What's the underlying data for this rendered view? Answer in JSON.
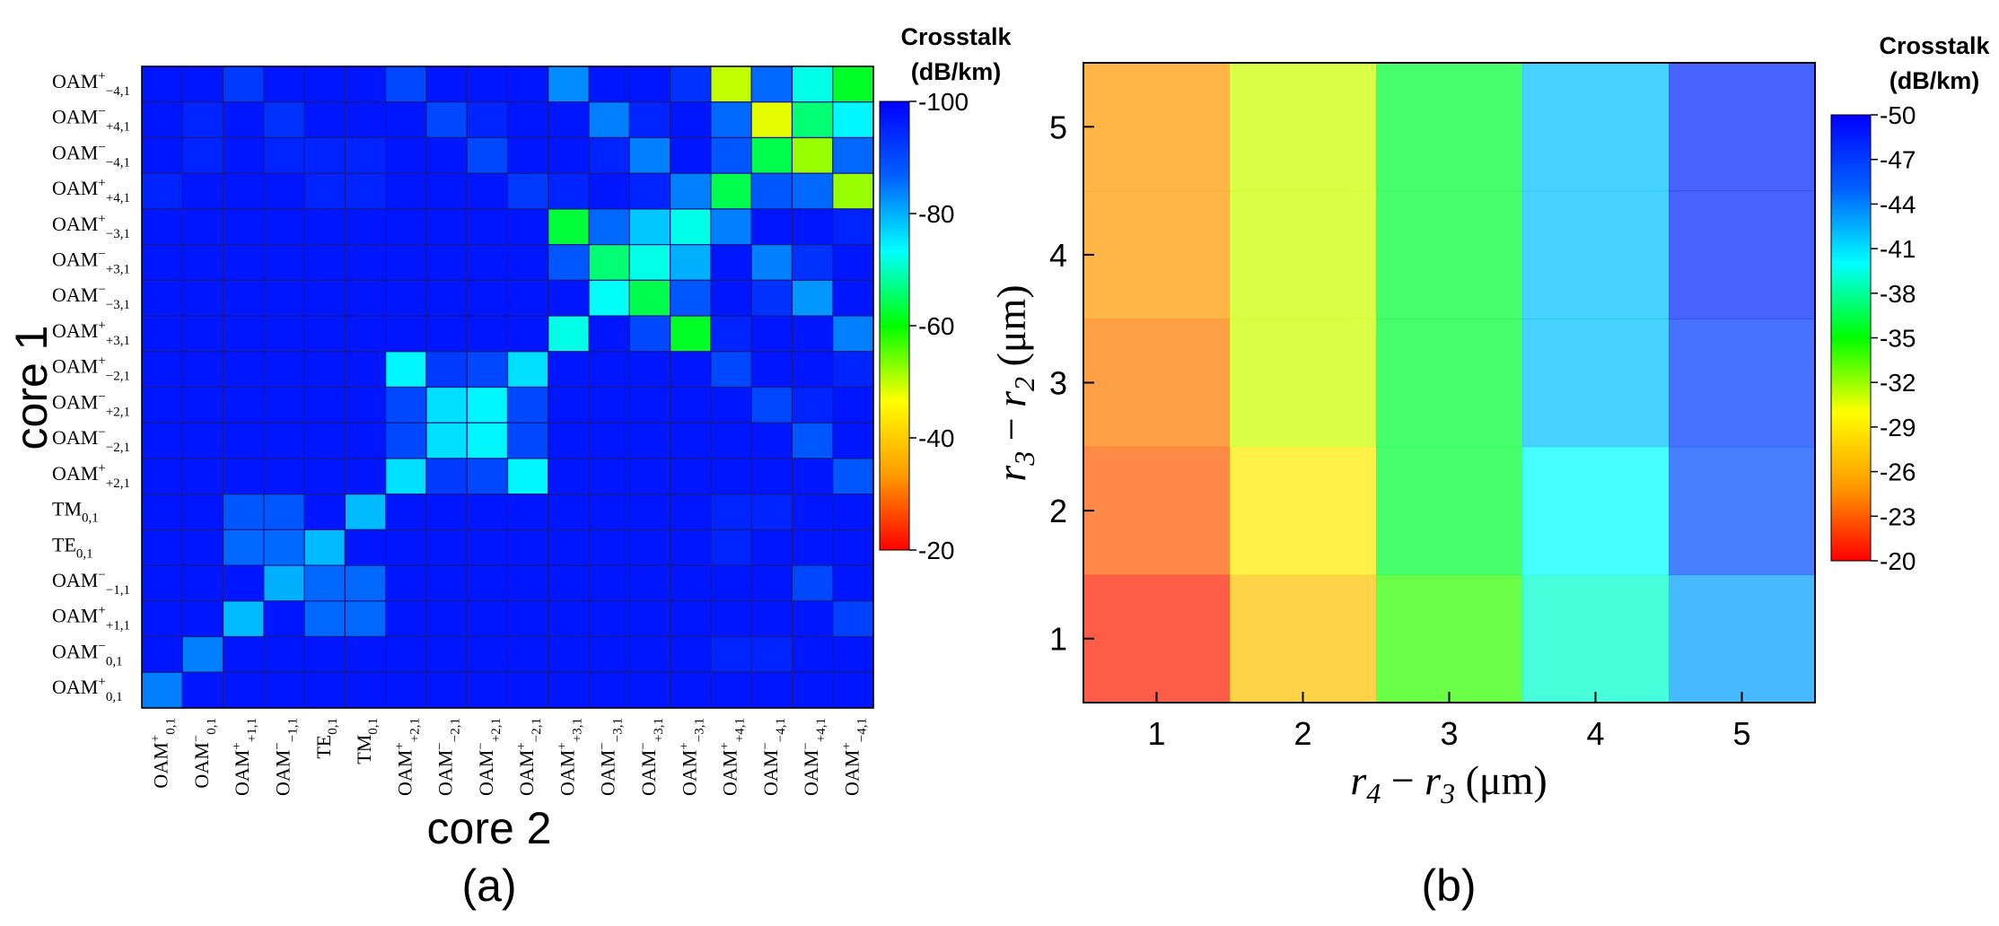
{
  "colors": {
    "scale": [
      "#ff0000",
      "#ff9a00",
      "#ffff00",
      "#00ff00",
      "#00ffff",
      "#0060ff",
      "#0000ff"
    ],
    "grid": "#1a1a8a",
    "text": "#000000"
  },
  "chart_data": [
    {
      "type": "heatmap",
      "panel_label": "(a)",
      "xlabel": "core 2",
      "ylabel": "core 1",
      "colorbar": {
        "title_line1": "Crosstalk",
        "title_line2": "(dB/km)",
        "range": [
          -100,
          -20
        ],
        "ticks": [
          "-100",
          "-80",
          "-60",
          "-40",
          "-20"
        ]
      },
      "x_categories": [
        {
          "base": "OAM",
          "sub": "0,1",
          "sup": "+"
        },
        {
          "base": "OAM",
          "sub": "0,1",
          "sup": "−"
        },
        {
          "base": "OAM",
          "sub": "+1,1",
          "sup": "+"
        },
        {
          "base": "OAM",
          "sub": "−1,1",
          "sup": "−"
        },
        {
          "base": "TE",
          "sub": "0,1",
          "sup": ""
        },
        {
          "base": "TM",
          "sub": "0,1",
          "sup": ""
        },
        {
          "base": "OAM",
          "sub": "+2,1",
          "sup": "+"
        },
        {
          "base": "OAM",
          "sub": "−2,1",
          "sup": "−"
        },
        {
          "base": "OAM",
          "sub": "+2,1",
          "sup": "−"
        },
        {
          "base": "OAM",
          "sub": "−2,1",
          "sup": "+"
        },
        {
          "base": "OAM",
          "sub": "+3,1",
          "sup": "+"
        },
        {
          "base": "OAM",
          "sub": "−3,1",
          "sup": "−"
        },
        {
          "base": "OAM",
          "sub": "+3,1",
          "sup": "−"
        },
        {
          "base": "OAM",
          "sub": "−3,1",
          "sup": "+"
        },
        {
          "base": "OAM",
          "sub": "+4,1",
          "sup": "+"
        },
        {
          "base": "OAM",
          "sub": "−4,1",
          "sup": "−"
        },
        {
          "base": "OAM",
          "sub": "+4,1",
          "sup": "−"
        },
        {
          "base": "OAM",
          "sub": "−4,1",
          "sup": "+"
        }
      ],
      "y_categories": [
        {
          "base": "OAM",
          "sub": "−4,1",
          "sup": "+"
        },
        {
          "base": "OAM",
          "sub": "+4,1",
          "sup": "−"
        },
        {
          "base": "OAM",
          "sub": "−4,1",
          "sup": "−"
        },
        {
          "base": "OAM",
          "sub": "+4,1",
          "sup": "+"
        },
        {
          "base": "OAM",
          "sub": "−3,1",
          "sup": "+"
        },
        {
          "base": "OAM",
          "sub": "+3,1",
          "sup": "−"
        },
        {
          "base": "OAM",
          "sub": "−3,1",
          "sup": "−"
        },
        {
          "base": "OAM",
          "sub": "+3,1",
          "sup": "+"
        },
        {
          "base": "OAM",
          "sub": "−2,1",
          "sup": "+"
        },
        {
          "base": "OAM",
          "sub": "+2,1",
          "sup": "−"
        },
        {
          "base": "OAM",
          "sub": "−2,1",
          "sup": "−"
        },
        {
          "base": "OAM",
          "sub": "+2,1",
          "sup": "+"
        },
        {
          "base": "TM",
          "sub": "0,1",
          "sup": ""
        },
        {
          "base": "TE",
          "sub": "0,1",
          "sup": ""
        },
        {
          "base": "OAM",
          "sub": "−1,1",
          "sup": "−"
        },
        {
          "base": "OAM",
          "sub": "+1,1",
          "sup": "+"
        },
        {
          "base": "OAM",
          "sub": "0,1",
          "sup": "−"
        },
        {
          "base": "OAM",
          "sub": "0,1",
          "sup": "+"
        }
      ],
      "values": [
        [
          -97,
          -97,
          -92,
          -97,
          -97,
          -97,
          -90,
          -97,
          -97,
          -97,
          -83,
          -97,
          -97,
          -93,
          -50,
          -86,
          -72,
          -62
        ],
        [
          -97,
          -95,
          -97,
          -93,
          -97,
          -97,
          -97,
          -90,
          -95,
          -97,
          -97,
          -84,
          -95,
          -97,
          -86,
          -48,
          -66,
          -74
        ],
        [
          -97,
          -95,
          -97,
          -95,
          -95,
          -95,
          -97,
          -97,
          -90,
          -97,
          -97,
          -95,
          -84,
          -97,
          -88,
          -64,
          -52,
          -86
        ],
        [
          -95,
          -97,
          -97,
          -97,
          -95,
          -95,
          -97,
          -97,
          -97,
          -92,
          -95,
          -97,
          -95,
          -84,
          -64,
          -88,
          -86,
          -52
        ],
        [
          -97,
          -97,
          -97,
          -97,
          -97,
          -97,
          -97,
          -97,
          -97,
          -97,
          -63,
          -86,
          -78,
          -72,
          -84,
          -97,
          -97,
          -95
        ],
        [
          -97,
          -97,
          -97,
          -97,
          -97,
          -97,
          -97,
          -97,
          -97,
          -97,
          -88,
          -66,
          -72,
          -80,
          -97,
          -84,
          -93,
          -97
        ],
        [
          -97,
          -97,
          -97,
          -97,
          -97,
          -97,
          -97,
          -97,
          -97,
          -97,
          -97,
          -73,
          -64,
          -88,
          -97,
          -93,
          -82,
          -97
        ],
        [
          -97,
          -97,
          -97,
          -97,
          -97,
          -97,
          -97,
          -97,
          -97,
          -97,
          -72,
          -97,
          -90,
          -62,
          -95,
          -97,
          -97,
          -84
        ],
        [
          -97,
          -97,
          -97,
          -97,
          -97,
          -97,
          -74,
          -92,
          -90,
          -76,
          -97,
          -97,
          -97,
          -97,
          -90,
          -97,
          -97,
          -95
        ],
        [
          -97,
          -97,
          -97,
          -97,
          -97,
          -97,
          -90,
          -76,
          -74,
          -90,
          -97,
          -97,
          -97,
          -97,
          -97,
          -90,
          -95,
          -97
        ],
        [
          -97,
          -97,
          -97,
          -97,
          -97,
          -97,
          -90,
          -76,
          -74,
          -90,
          -97,
          -97,
          -97,
          -97,
          -97,
          -97,
          -88,
          -97
        ],
        [
          -97,
          -97,
          -97,
          -97,
          -97,
          -97,
          -76,
          -92,
          -90,
          -74,
          -97,
          -97,
          -97,
          -97,
          -97,
          -97,
          -97,
          -88
        ],
        [
          -97,
          -97,
          -88,
          -88,
          -97,
          -79,
          -97,
          -97,
          -97,
          -97,
          -97,
          -97,
          -97,
          -97,
          -95,
          -95,
          -97,
          -97
        ],
        [
          -97,
          -97,
          -86,
          -86,
          -79,
          -97,
          -97,
          -97,
          -97,
          -97,
          -97,
          -97,
          -97,
          -97,
          -95,
          -97,
          -97,
          -97
        ],
        [
          -97,
          -97,
          -97,
          -80,
          -86,
          -86,
          -97,
          -97,
          -97,
          -97,
          -97,
          -97,
          -97,
          -97,
          -97,
          -97,
          -90,
          -97
        ],
        [
          -97,
          -97,
          -79,
          -97,
          -86,
          -86,
          -97,
          -97,
          -97,
          -97,
          -97,
          -97,
          -97,
          -97,
          -97,
          -97,
          -97,
          -91
        ],
        [
          -97,
          -84,
          -97,
          -97,
          -97,
          -97,
          -97,
          -97,
          -97,
          -97,
          -97,
          -97,
          -97,
          -97,
          -95,
          -95,
          -97,
          -97
        ],
        [
          -84,
          -97,
          -97,
          -97,
          -97,
          -97,
          -97,
          -97,
          -97,
          -97,
          -97,
          -97,
          -97,
          -97,
          -97,
          -97,
          -97,
          -97
        ]
      ]
    },
    {
      "type": "heatmap",
      "panel_label": "(b)",
      "xlabel": "r4 − r3 (μm)",
      "ylabel": "r3 − r2 (μm)",
      "x": [
        1,
        2,
        3,
        4,
        5
      ],
      "y": [
        1,
        2,
        3,
        4,
        5
      ],
      "xlim": [
        0.5,
        5.5
      ],
      "ylim": [
        0.5,
        5.5
      ],
      "colorbar": {
        "title_line1": "Crosstalk",
        "title_line2": "(dB/km)",
        "range": [
          -50,
          -20
        ],
        "ticks": [
          "-50",
          "-47",
          "-44",
          "-41",
          "-38",
          "-35",
          "-32",
          "-29",
          "-26",
          "-23",
          "-20"
        ]
      },
      "values": [
        [
          -21,
          -27,
          -34,
          -39,
          -43
        ],
        [
          -23,
          -29,
          -36,
          -40,
          -46
        ],
        [
          -24,
          -31,
          -36,
          -42,
          -47
        ],
        [
          -25,
          -31,
          -36,
          -42,
          -48
        ],
        [
          -25,
          -31,
          -36,
          -42,
          -48
        ]
      ]
    }
  ]
}
